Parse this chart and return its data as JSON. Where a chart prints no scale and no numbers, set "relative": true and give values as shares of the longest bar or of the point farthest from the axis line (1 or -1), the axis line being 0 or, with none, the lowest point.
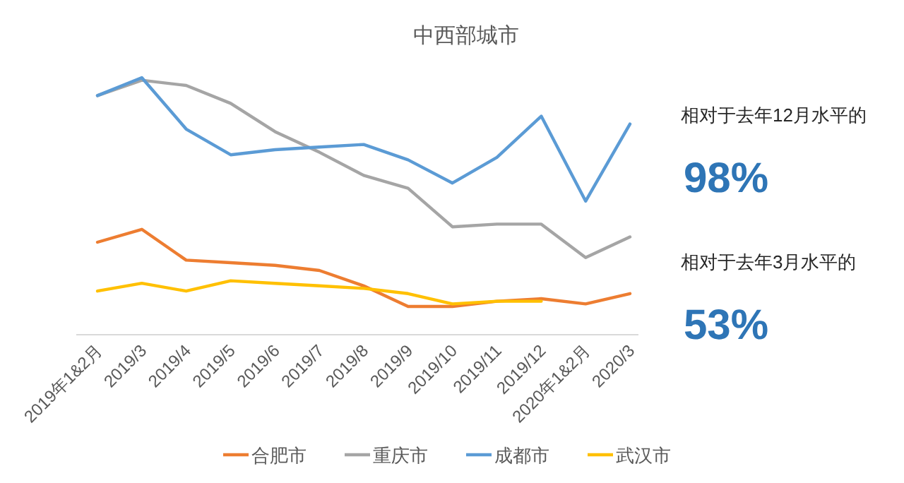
{
  "chart_data": {
    "type": "line",
    "title": "中西部城市",
    "relative": true,
    "legend": "bottom",
    "categories": [
      "2019年1&2月",
      "2019/3",
      "2019/4",
      "2019/5",
      "2019/6",
      "2019/7",
      "2019/8",
      "2019/9",
      "2019/10",
      "2019/11",
      "2019/12",
      "2020年1&2月",
      "2020/3"
    ],
    "series": [
      {
        "name": "合肥市",
        "color": "#ed7d31",
        "values": [
          0.36,
          0.41,
          0.29,
          0.28,
          0.27,
          0.25,
          0.19,
          0.11,
          0.11,
          0.13,
          0.14,
          0.12,
          0.16
        ]
      },
      {
        "name": "重庆市",
        "color": "#a5a5a5",
        "values": [
          0.93,
          0.99,
          0.97,
          0.9,
          0.79,
          0.71,
          0.62,
          0.57,
          0.42,
          0.43,
          0.43,
          0.3,
          0.38
        ]
      },
      {
        "name": "成都市",
        "color": "#5b9bd5",
        "values": [
          0.93,
          1,
          0.8,
          0.7,
          0.72,
          0.73,
          0.74,
          0.68,
          0.59,
          0.69,
          0.85,
          0.52,
          0.82
        ]
      },
      {
        "name": "武汉市",
        "color": "#ffc000",
        "values": [
          0.17,
          0.2,
          0.17,
          0.21,
          0.2,
          0.19,
          0.18,
          0.16,
          0.12,
          0.13,
          0.13,
          null,
          null
        ]
      }
    ],
    "annotations": [
      "相对于去年12月水平的",
      "98%",
      "相对于去年3月水平的",
      "53%"
    ]
  }
}
